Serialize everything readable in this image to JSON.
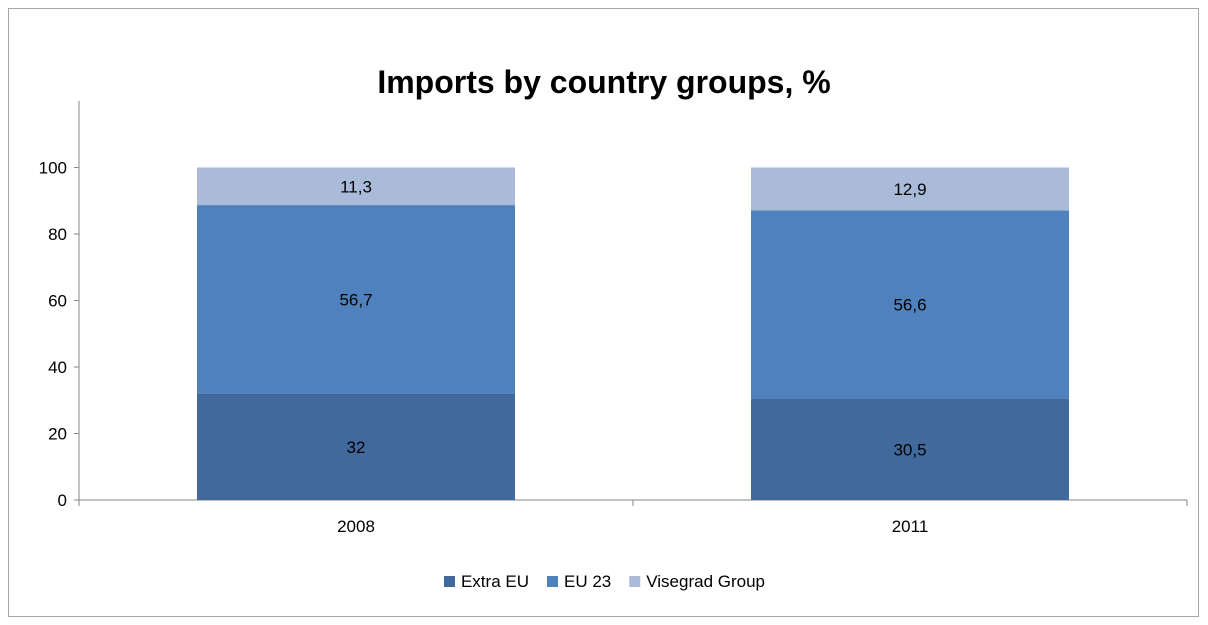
{
  "chart_data": {
    "type": "bar",
    "stacked": true,
    "title": "Imports by country groups, %",
    "categories": [
      "2008",
      "2011"
    ],
    "series": [
      {
        "name": "Extra EU",
        "values": [
          32,
          30.5
        ],
        "labels": [
          "32",
          "30,5"
        ],
        "color": "#41699b"
      },
      {
        "name": "EU 23",
        "values": [
          56.7,
          56.6
        ],
        "labels": [
          "56,7",
          "56,6"
        ],
        "color": "#4f81bd"
      },
      {
        "name": "Visegrad Group",
        "values": [
          11.3,
          12.9
        ],
        "labels": [
          "11,3",
          "12,9"
        ],
        "color": "#a9bbd9"
      }
    ],
    "ylim": [
      0,
      120
    ],
    "yticks": [
      "0",
      "20",
      "40",
      "60",
      "80",
      "100"
    ],
    "ytick_values": [
      0,
      20,
      40,
      60,
      80,
      100
    ],
    "grid": false,
    "legend_position": "bottom"
  }
}
